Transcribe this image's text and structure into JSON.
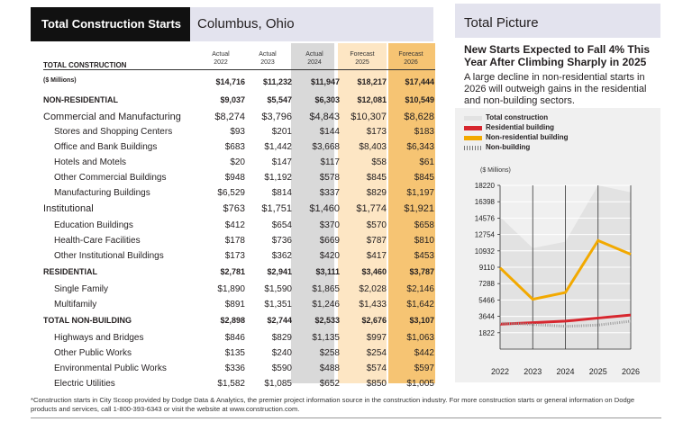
{
  "header": {
    "left_title": "Total Construction Starts",
    "location": "Columbus, Ohio",
    "right_title": "Total Picture"
  },
  "table": {
    "title": "TOTAL CONSTRUCTION",
    "columns": [
      {
        "line1": "Actual",
        "line2": "2022"
      },
      {
        "line1": "Actual",
        "line2": "2023"
      },
      {
        "line1": "Actual",
        "line2": "2024"
      },
      {
        "line1": "Forecast",
        "line2": "2025"
      },
      {
        "line1": "Forecast",
        "line2": "2026"
      }
    ],
    "rows": [
      {
        "label": "($ Millions)",
        "values": [
          "$14,716",
          "$11,232",
          "$11,947",
          "$18,217",
          "$17,444"
        ],
        "style": "bold"
      },
      {
        "label": "NON-RESIDENTIAL",
        "values": [
          "$9,037",
          "$5,547",
          "$6,303",
          "$12,081",
          "$10,549"
        ],
        "style": "bold"
      },
      {
        "label": "Commercial and Manufacturing",
        "values": [
          "$8,274",
          "$3,796",
          "$4,843",
          "$10,307",
          "$8,628"
        ],
        "style": "cat"
      },
      {
        "label": "Stores and Shopping Centers",
        "values": [
          "$93",
          "$201",
          "$144",
          "$173",
          "$183"
        ],
        "style": "sub"
      },
      {
        "label": "Office and Bank Buildings",
        "values": [
          "$683",
          "$1,442",
          "$3,668",
          "$8,403",
          "$6,343"
        ],
        "style": "sub"
      },
      {
        "label": "Hotels and Motels",
        "values": [
          "$20",
          "$147",
          "$117",
          "$58",
          "$61"
        ],
        "style": "sub"
      },
      {
        "label": "Other Commercial Buildings",
        "values": [
          "$948",
          "$1,192",
          "$578",
          "$845",
          "$845"
        ],
        "style": "sub"
      },
      {
        "label": "Manufacturing Buildings",
        "values": [
          "$6,529",
          "$814",
          "$337",
          "$829",
          "$1,197"
        ],
        "style": "sub"
      },
      {
        "label": "Institutional",
        "values": [
          "$763",
          "$1,751",
          "$1,460",
          "$1,774",
          "$1,921"
        ],
        "style": "cat"
      },
      {
        "label": "Education Buildings",
        "values": [
          "$412",
          "$654",
          "$370",
          "$570",
          "$658"
        ],
        "style": "sub"
      },
      {
        "label": "Health-Care Facilities",
        "values": [
          "$178",
          "$736",
          "$669",
          "$787",
          "$810"
        ],
        "style": "sub"
      },
      {
        "label": "Other Institutional Buildings",
        "values": [
          "$173",
          "$362",
          "$420",
          "$417",
          "$453"
        ],
        "style": "sub"
      },
      {
        "label": "RESIDENTIAL",
        "values": [
          "$2,781",
          "$2,941",
          "$3,111",
          "$3,460",
          "$3,787"
        ],
        "style": "bold"
      },
      {
        "label": "Single Family",
        "values": [
          "$1,890",
          "$1,590",
          "$1,865",
          "$2,028",
          "$2,146"
        ],
        "style": "sub"
      },
      {
        "label": "Multifamily",
        "values": [
          "$891",
          "$1,351",
          "$1,246",
          "$1,433",
          "$1,642"
        ],
        "style": "sub"
      },
      {
        "label": "TOTAL NON-BUILDING",
        "values": [
          "$2,898",
          "$2,744",
          "$2,533",
          "$2,676",
          "$3,107"
        ],
        "style": "bold"
      },
      {
        "label": "Highways and Bridges",
        "values": [
          "$846",
          "$829",
          "$1,135",
          "$997",
          "$1,063"
        ],
        "style": "sub"
      },
      {
        "label": "Other Public Works",
        "values": [
          "$135",
          "$240",
          "$258",
          "$254",
          "$442"
        ],
        "style": "sub"
      },
      {
        "label": "Environmental Public Works",
        "values": [
          "$336",
          "$590",
          "$488",
          "$574",
          "$597"
        ],
        "style": "sub"
      },
      {
        "label": "Electric Utilities",
        "values": [
          "$1,582",
          "$1,085",
          "$652",
          "$850",
          "$1,005"
        ],
        "style": "sub"
      }
    ]
  },
  "panel": {
    "headline": "New Starts Expected to Fall 4% This Year After Climbing Sharply in 2025",
    "description": "A large decline in non-residential starts in 2026 will outweigh gains in the residential and non-building sectors."
  },
  "chart_data": {
    "type": "line",
    "ylabel": "($ Millions)",
    "x": [
      "2022",
      "2023",
      "2024",
      "2025",
      "2026"
    ],
    "yticks": [
      1822,
      3644,
      5466,
      7288,
      9110,
      10932,
      12754,
      14576,
      16398,
      18220
    ],
    "ylim": [
      0,
      18220
    ],
    "grid": true,
    "legend_position": "top",
    "series": [
      {
        "name": "Total construction",
        "kind": "area",
        "color": "#e2e2e2",
        "values": [
          14716,
          11232,
          11947,
          18217,
          17444
        ]
      },
      {
        "name": "Residential building",
        "kind": "line",
        "color": "#d7262e",
        "values": [
          2781,
          2941,
          3111,
          3460,
          3787
        ]
      },
      {
        "name": "Non-residential building",
        "kind": "line",
        "color": "#f2a900",
        "values": [
          9037,
          5547,
          6303,
          12081,
          10549
        ]
      },
      {
        "name": "Non-building",
        "kind": "dotted",
        "color": "#9a9a9a",
        "values": [
          2898,
          2744,
          2533,
          2676,
          3107
        ]
      }
    ]
  },
  "footer": {
    "note": "*Construction starts in City Scoop provided by Dodge Data & Analytics, the premier project information source in the construction industry. For more construction starts or general information on Dodge products and services, call 1-800-393-6343 or visit the website at www.construction.com."
  }
}
